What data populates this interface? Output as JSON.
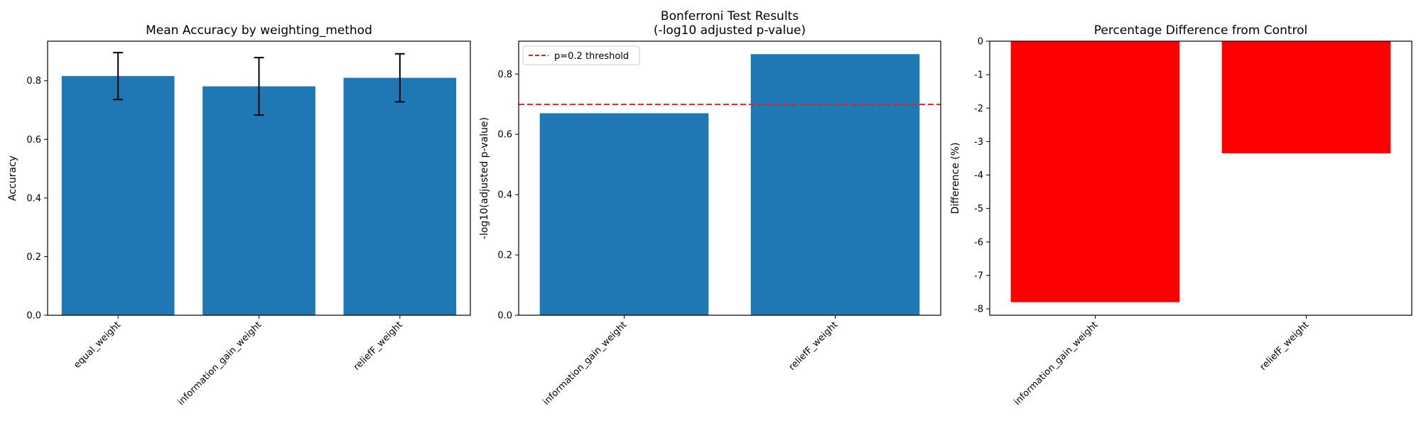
{
  "colors": {
    "bar": "#1f77b4",
    "negative_bar": "#ff0000",
    "threshold_line": "#d62728",
    "axes": "#000000",
    "background": "#ffffff"
  },
  "chart_data": [
    {
      "type": "bar",
      "title": "Mean Accuracy by weighting_method",
      "xlabel": "",
      "ylabel": "Accuracy",
      "categories": [
        "equal_weight",
        "information_gain_weight",
        "reliefF_weight"
      ],
      "values": [
        0.816,
        0.781,
        0.81
      ],
      "error": [
        0.08,
        0.098,
        0.082
      ],
      "ylim": [
        0,
        0.935
      ],
      "yticks": [
        "0.0",
        "0.2",
        "0.4",
        "0.6",
        "0.8"
      ],
      "grid": false
    },
    {
      "type": "bar",
      "title": "Bonferroni Test Results\n(-log10 adjusted p-value)",
      "xlabel": "",
      "ylabel": "-log10(adjusted p-value)",
      "categories": [
        "information_gain_weight",
        "reliefF_weight"
      ],
      "values": [
        0.67,
        0.866
      ],
      "ylim": [
        0,
        0.909
      ],
      "yticks": [
        "0.0",
        "0.2",
        "0.4",
        "0.6",
        "0.8"
      ],
      "threshold": {
        "value": 0.699,
        "label": "p=0.2 threshold"
      },
      "legend": "top-left",
      "grid": false
    },
    {
      "type": "bar",
      "title": "Percentage Difference from Control",
      "xlabel": "",
      "ylabel": "Difference (%)",
      "categories": [
        "information_gain_weight",
        "reliefF_weight"
      ],
      "values": [
        -7.8,
        -3.35
      ],
      "ylim": [
        -8.19,
        0
      ],
      "yticks": [
        "-8",
        "-7",
        "-6",
        "-5",
        "-4",
        "-3",
        "-2",
        "-1",
        "0"
      ],
      "grid": false
    }
  ]
}
